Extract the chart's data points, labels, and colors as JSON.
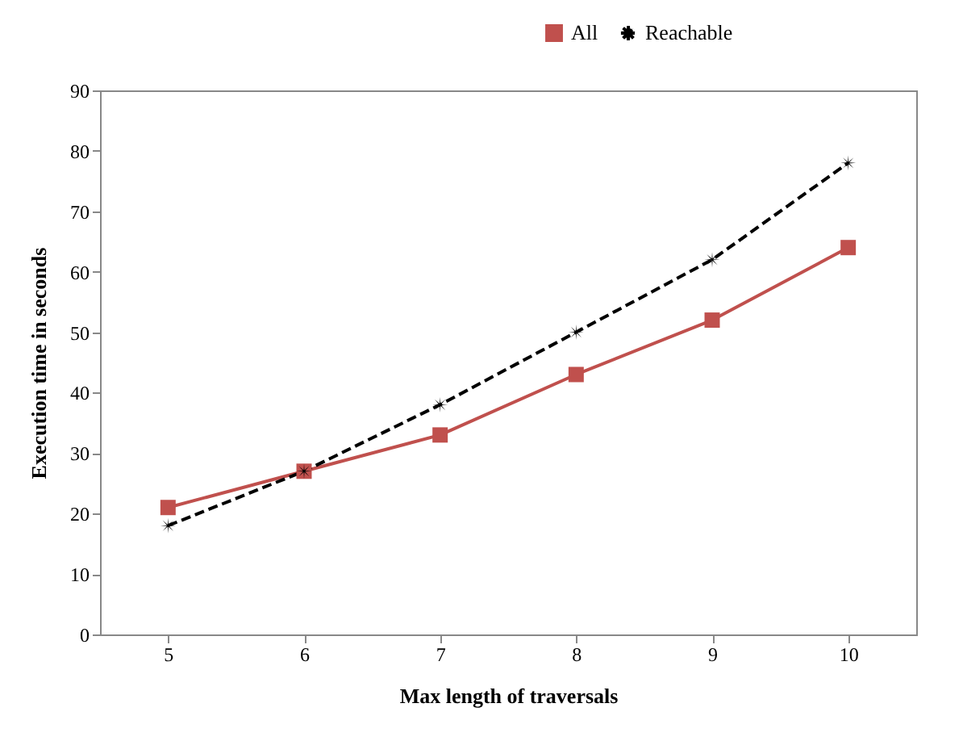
{
  "chart_data": {
    "type": "line",
    "xlabel": "Max length of traversals",
    "ylabel": "Execution time in seconds",
    "categories": [
      "5",
      "6",
      "7",
      "8",
      "9",
      "10"
    ],
    "series": [
      {
        "name": "All",
        "color": "#c0504d",
        "values": [
          21,
          27,
          33,
          43,
          52,
          64
        ],
        "marker": "square",
        "line_style": "solid"
      },
      {
        "name": "Reachable",
        "color": "#000000",
        "values": [
          18,
          27,
          38,
          50,
          62,
          78
        ],
        "marker": "star",
        "line_style": "dashed"
      }
    ],
    "ylim": [
      0,
      90
    ],
    "yticks": [
      0,
      10,
      20,
      30,
      40,
      50,
      60,
      70,
      80,
      90
    ],
    "legend": "top right"
  }
}
